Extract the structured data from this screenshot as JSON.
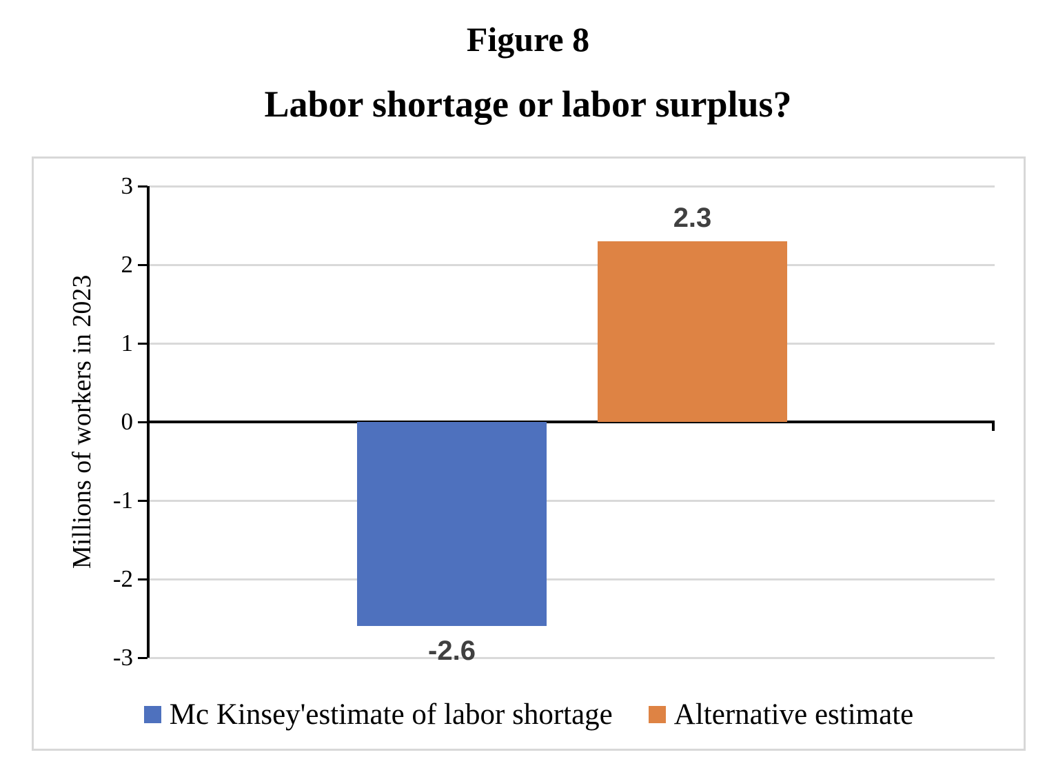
{
  "page": {
    "figure_label": "Figure 8"
  },
  "chart_data": {
    "type": "bar",
    "title": "Labor shortage or labor surplus?",
    "xlabel": "",
    "ylabel": "Millions of workers in 2023",
    "ylim": [
      -3,
      3
    ],
    "yticks": [
      3,
      2,
      1,
      0,
      -1,
      -2,
      -3
    ],
    "grid": true,
    "legend_position": "bottom",
    "series": [
      {
        "name": "Mc Kinsey'estimate of labor shortage",
        "value": -2.6,
        "label": "-2.6",
        "color": "#4E71BE"
      },
      {
        "name": "Alternative estimate",
        "value": 2.3,
        "label": "2.3",
        "color": "#DE8344"
      }
    ],
    "colors": {
      "gridline": "#D9D9D9",
      "axis": "#000000",
      "data_label": "#404040",
      "frame_border": "#D8D8D8"
    }
  }
}
